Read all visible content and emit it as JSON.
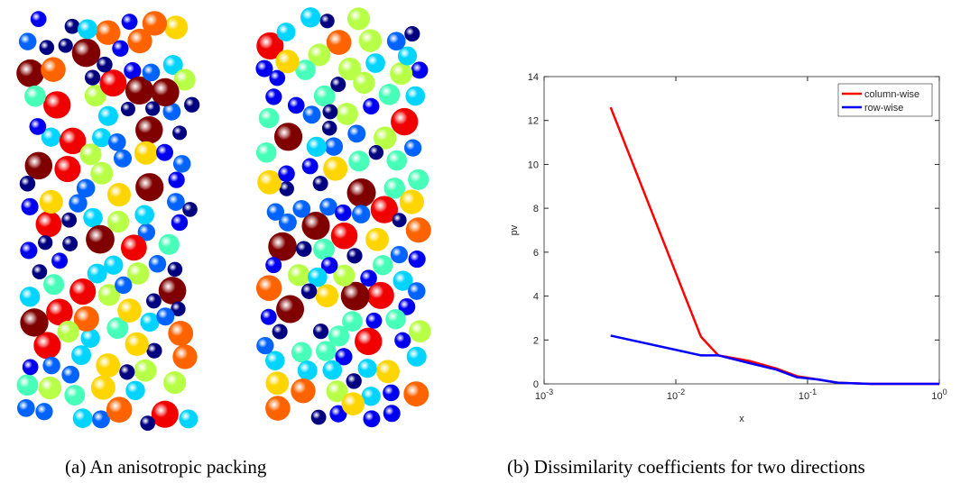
{
  "figure": {
    "caption_a": "(a) An anisotropic packing",
    "caption_b": "(b) Dissimilarity coefficients for two directions"
  },
  "chart_data": {
    "type": "line",
    "xlabel": "x",
    "ylabel": "pv",
    "xscale": "log",
    "x": [
      0.0032,
      0.0155,
      0.021,
      0.036,
      0.058,
      0.083,
      0.12,
      0.17,
      0.3,
      1
    ],
    "series": [
      {
        "name": "column-wise",
        "color": "#ff0000",
        "values": [
          12.6,
          2.15,
          1.3,
          1.05,
          0.7,
          0.35,
          0.2,
          0.05,
          0,
          0
        ]
      },
      {
        "name": "row-wise",
        "color": "#0000ff",
        "values": [
          2.2,
          1.3,
          1.3,
          0.95,
          0.65,
          0.3,
          0.2,
          0.05,
          0,
          0
        ]
      }
    ],
    "xlim": [
      0.001,
      1
    ],
    "xticks": [
      {
        "value": 0.001,
        "label": "10^-3"
      },
      {
        "value": 0.01,
        "label": "10^-2"
      },
      {
        "value": 0.1,
        "label": "10^-1"
      },
      {
        "value": 1,
        "label": "10^0"
      }
    ],
    "ylim": [
      0,
      14
    ],
    "yticks": [
      0,
      2,
      4,
      6,
      8,
      10,
      12,
      14
    ],
    "legend": "northeast"
  }
}
